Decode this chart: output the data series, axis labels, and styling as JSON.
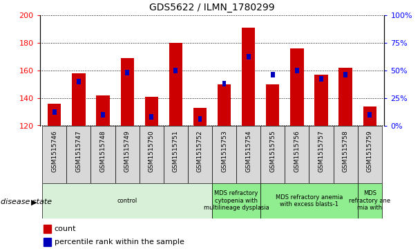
{
  "title": "GDS5622 / ILMN_1780299",
  "samples": [
    "GSM1515746",
    "GSM1515747",
    "GSM1515748",
    "GSM1515749",
    "GSM1515750",
    "GSM1515751",
    "GSM1515752",
    "GSM1515753",
    "GSM1515754",
    "GSM1515755",
    "GSM1515756",
    "GSM1515757",
    "GSM1515758",
    "GSM1515759"
  ],
  "counts": [
    136,
    158,
    142,
    169,
    141,
    180,
    133,
    150,
    191,
    150,
    176,
    157,
    162,
    134
  ],
  "percentile_ranks": [
    12,
    40,
    10,
    48,
    8,
    50,
    6,
    38,
    62,
    46,
    50,
    42,
    46,
    10
  ],
  "ylim_left": [
    120,
    200
  ],
  "ylim_right": [
    0,
    100
  ],
  "yticks_left": [
    120,
    140,
    160,
    180,
    200
  ],
  "yticks_right": [
    0,
    25,
    50,
    75,
    100
  ],
  "bar_color": "#cc0000",
  "blue_color": "#0000bb",
  "disease_groups": [
    {
      "label": "control",
      "start": 0,
      "end": 7,
      "color": "#d8f0d8"
    },
    {
      "label": "MDS refractory\ncytopenia with\nmultilineage dysplasia",
      "start": 7,
      "end": 9,
      "color": "#90ee90"
    },
    {
      "label": "MDS refractory anemia\nwith excess blasts-1",
      "start": 9,
      "end": 13,
      "color": "#90ee90"
    },
    {
      "label": "MDS\nrefractory ane\nmia with",
      "start": 13,
      "end": 14,
      "color": "#90ee90"
    }
  ],
  "xlabel_disease": "disease state",
  "legend_count": "count",
  "legend_percentile": "percentile rank within the sample",
  "bar_width": 0.55,
  "sample_box_color": "#d8d8d8"
}
